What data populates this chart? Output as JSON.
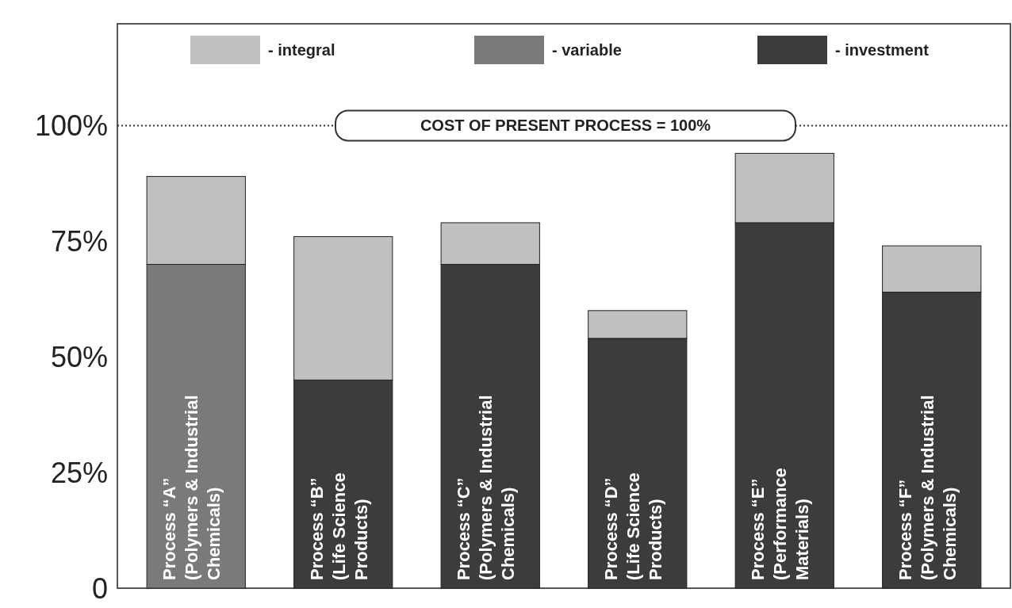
{
  "chart_data": {
    "type": "bar",
    "stacked": true,
    "categories": [
      "Process “A”\n(Polymers & Industrial\nChemicals)",
      "Process “B”\n(Life Science\nProducts)",
      "Process “C”\n(Polymers & Industrial\nChemicals)",
      "Process “D”\n(Life Science\nProducts)",
      "Process “E”\n(Performance\nMaterials)",
      "Process “F”\n(Polymers & Industrial\nChemicals)"
    ],
    "series": [
      {
        "name": "- variable",
        "color": "#7a7a7a",
        "values": [
          70,
          null,
          null,
          null,
          null,
          null
        ]
      },
      {
        "name": "- investment",
        "color": "#3c3c3c",
        "values": [
          null,
          45,
          70,
          54,
          79,
          64
        ]
      },
      {
        "name": "- integral",
        "color": "#c0c0c0",
        "values": [
          19,
          31,
          9,
          6,
          15,
          10
        ]
      }
    ],
    "ylim": [
      0,
      122
    ],
    "yticks": [
      {
        "value": 0,
        "label": "0"
      },
      {
        "value": 25,
        "label": "25%"
      },
      {
        "value": 50,
        "label": "50%"
      },
      {
        "value": 75,
        "label": "75%"
      },
      {
        "value": 100,
        "label": "100%"
      }
    ],
    "ref_lines": [
      {
        "axis": "y",
        "value": 100,
        "label": "COST OF PRESENT PROCESS = 100%",
        "line_style": "dotted"
      }
    ],
    "legend": "top",
    "grid": false
  }
}
